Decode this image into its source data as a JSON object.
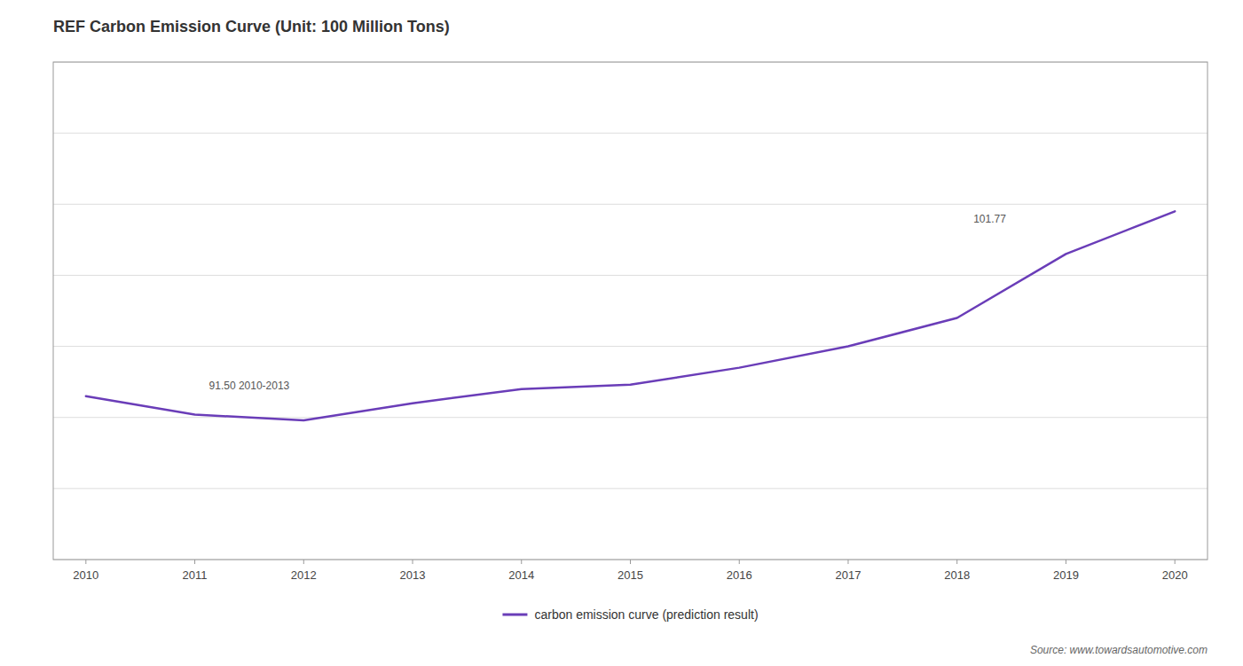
{
  "chart_data": {
    "type": "line",
    "title": "REF Carbon Emission Curve (Unit: 100 Million Tons)",
    "x": [
      2010,
      2011,
      2012,
      2013,
      2014,
      2015,
      2016,
      2017,
      2018,
      2019,
      2020
    ],
    "series": [
      {
        "name": "carbon emission curve (prediction result)",
        "color": "#6a3db8",
        "values": [
          91.5,
          90.2,
          89.8,
          91.0,
          92.0,
          92.3,
          93.5,
          95.0,
          97.0,
          101.5,
          104.5
        ]
      }
    ],
    "xlim": [
      2009.7,
      2020.3
    ],
    "xticks": [
      2010,
      2011,
      2012,
      2013,
      2014,
      2015,
      2016,
      2017,
      2018,
      2019,
      2020
    ],
    "ylim": [
      80,
      115
    ],
    "yticks": [
      80,
      85,
      90,
      95,
      100,
      105,
      110,
      115
    ],
    "tick_labels": "x",
    "grid": true,
    "legend": "bottom",
    "annotations": [
      {
        "text": "91.50 2010-2013",
        "x": 2011.5,
        "y": 91.8
      },
      {
        "text": "101.77",
        "x": 2018.3,
        "y": 103.5
      }
    ],
    "source": "Source: www.towardsautomotive.com"
  }
}
